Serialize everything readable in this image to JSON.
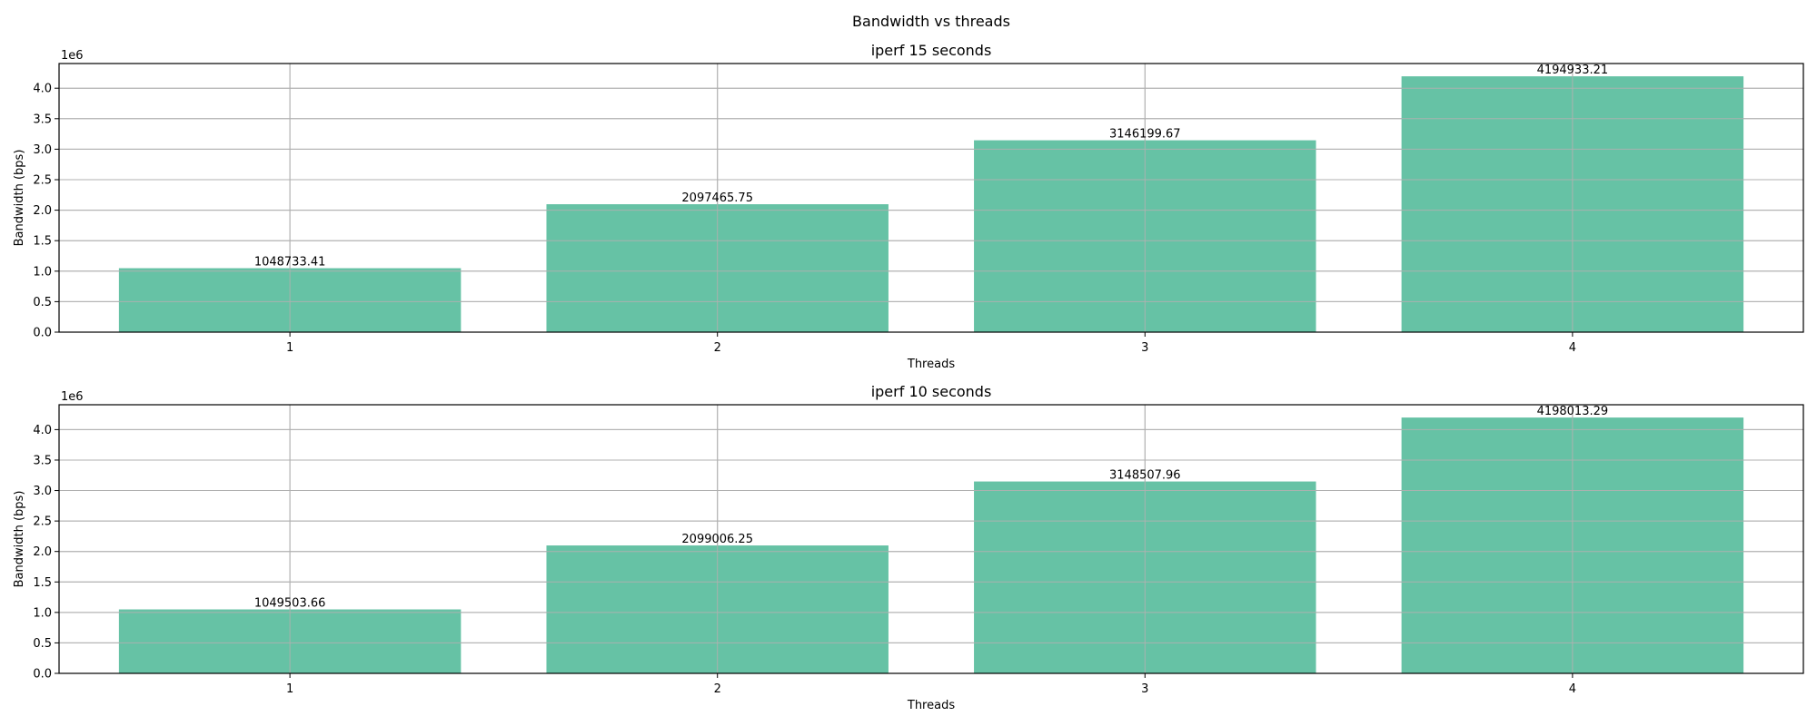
{
  "figure": {
    "suptitle": "Bandwidth vs threads"
  },
  "colors": {
    "bar": "#66c2a5",
    "grid": "#b0b0b0",
    "axis": "#000000"
  },
  "chart_data": [
    {
      "type": "bar",
      "title": "iperf 15 seconds",
      "xlabel": "Threads",
      "ylabel": "Bandwidth (bps)",
      "offset_label": "1e6",
      "categories": [
        "1",
        "2",
        "3",
        "4"
      ],
      "values": [
        1048733.41,
        2097465.75,
        3146199.67,
        4194933.21
      ],
      "value_labels": [
        "1048733.41",
        "2097465.75",
        "3146199.67",
        "4194933.21"
      ],
      "ylim": [
        0,
        4404679.87
      ],
      "yticks": [
        0,
        500000,
        1000000,
        1500000,
        2000000,
        2500000,
        3000000,
        3500000,
        4000000
      ],
      "ytick_labels": [
        "0.0",
        "0.5",
        "1.0",
        "1.5",
        "2.0",
        "2.5",
        "3.0",
        "3.5",
        "4.0"
      ],
      "grid": true
    },
    {
      "type": "bar",
      "title": "iperf 10 seconds",
      "xlabel": "Threads",
      "ylabel": "Bandwidth (bps)",
      "offset_label": "1e6",
      "categories": [
        "1",
        "2",
        "3",
        "4"
      ],
      "values": [
        1049503.66,
        2099006.25,
        3148507.96,
        4198013.29
      ],
      "value_labels": [
        "1049503.66",
        "2099006.25",
        "3148507.96",
        "4198013.29"
      ],
      "ylim": [
        0,
        4407913.95
      ],
      "yticks": [
        0,
        500000,
        1000000,
        1500000,
        2000000,
        2500000,
        3000000,
        3500000,
        4000000
      ],
      "ytick_labels": [
        "0.0",
        "0.5",
        "1.0",
        "1.5",
        "2.0",
        "2.5",
        "3.0",
        "3.5",
        "4.0"
      ],
      "grid": true
    }
  ]
}
